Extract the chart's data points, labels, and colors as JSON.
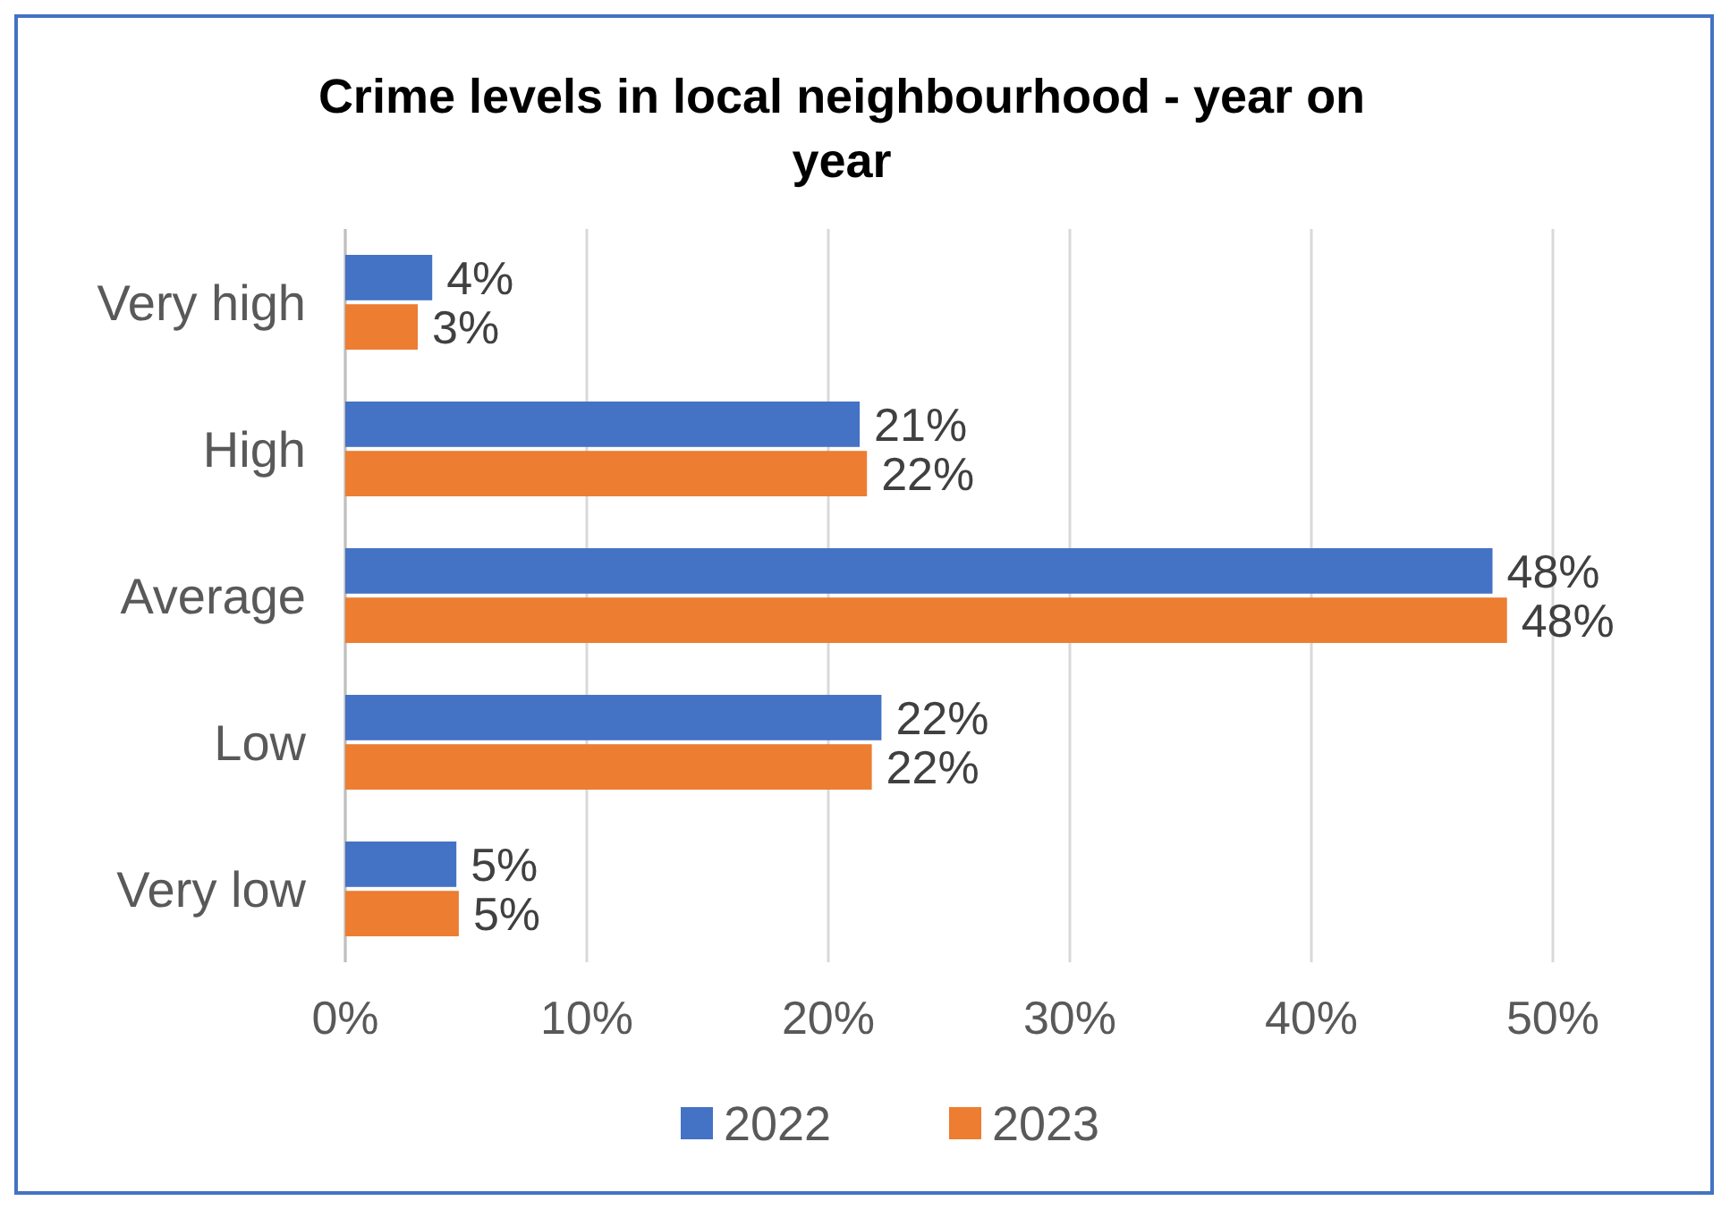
{
  "chart_data": {
    "type": "bar",
    "orientation": "horizontal",
    "title": "Crime levels in local neighbourhood  - year on year",
    "categories": [
      "Very high",
      "High",
      "Average",
      "Low",
      "Very low"
    ],
    "series": [
      {
        "name": "2022",
        "color": "#4472c4",
        "values": [
          3.6,
          21.3,
          47.5,
          22.2,
          4.6
        ],
        "value_labels": [
          "4%",
          "21%",
          "48%",
          "22%",
          "5%"
        ]
      },
      {
        "name": "2023",
        "color": "#ed7d31",
        "values": [
          3.0,
          21.6,
          48.1,
          21.8,
          4.7
        ],
        "value_labels": [
          "3%",
          "22%",
          "48%",
          "22%",
          "5%"
        ]
      }
    ],
    "xlim": [
      0,
      50
    ],
    "xticks": [
      {
        "value": 0,
        "label": "0%"
      },
      {
        "value": 10,
        "label": "10%"
      },
      {
        "value": 20,
        "label": "20%"
      },
      {
        "value": 30,
        "label": "30%"
      },
      {
        "value": 40,
        "label": "40%"
      },
      {
        "value": 50,
        "label": "50%"
      }
    ],
    "grid": "x",
    "legend": "bottom"
  }
}
